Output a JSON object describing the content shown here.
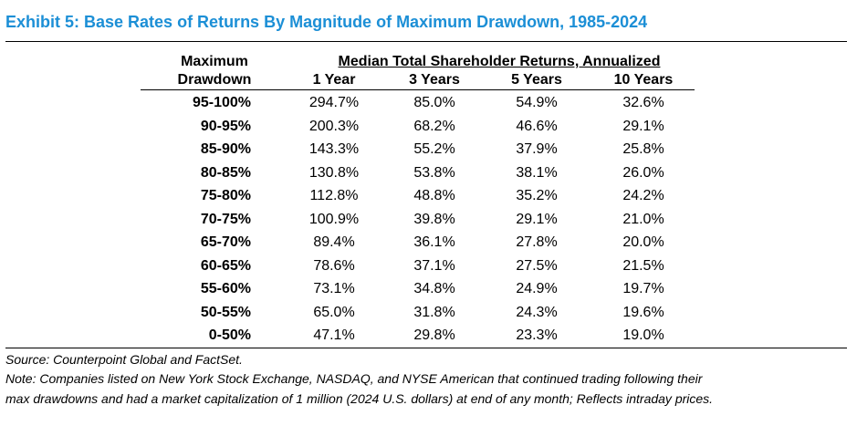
{
  "title": "Exhibit 5: Base Rates of Returns By Magnitude of Maximum Drawdown, 1985-2024",
  "table": {
    "row_header_line1": "Maximum",
    "row_header_line2": "Drawdown",
    "group_header": "Median Total Shareholder Returns, Annualized",
    "columns": [
      "1 Year",
      "3 Years",
      "5 Years",
      "10 Years"
    ],
    "rows": [
      {
        "label": "95-100%",
        "values": [
          "294.7%",
          "85.0%",
          "54.9%",
          "32.6%"
        ]
      },
      {
        "label": "90-95%",
        "values": [
          "200.3%",
          "68.2%",
          "46.6%",
          "29.1%"
        ]
      },
      {
        "label": "85-90%",
        "values": [
          "143.3%",
          "55.2%",
          "37.9%",
          "25.8%"
        ]
      },
      {
        "label": "80-85%",
        "values": [
          "130.8%",
          "53.8%",
          "38.1%",
          "26.0%"
        ]
      },
      {
        "label": "75-80%",
        "values": [
          "112.8%",
          "48.8%",
          "35.2%",
          "24.2%"
        ]
      },
      {
        "label": "70-75%",
        "values": [
          "100.9%",
          "39.8%",
          "29.1%",
          "21.0%"
        ]
      },
      {
        "label": "65-70%",
        "values": [
          "89.4%",
          "36.1%",
          "27.8%",
          "20.0%"
        ]
      },
      {
        "label": "60-65%",
        "values": [
          "78.6%",
          "37.1%",
          "27.5%",
          "21.5%"
        ]
      },
      {
        "label": "55-60%",
        "values": [
          "73.1%",
          "34.8%",
          "24.9%",
          "19.7%"
        ]
      },
      {
        "label": "50-55%",
        "values": [
          "65.0%",
          "31.8%",
          "24.3%",
          "19.6%"
        ]
      },
      {
        "label": "0-50%",
        "values": [
          "47.1%",
          "29.8%",
          "23.3%",
          "19.0%"
        ]
      }
    ]
  },
  "footer": {
    "source": "Source: Counterpoint Global and FactSet.",
    "note_line1": "Note: Companies listed on New York Stock Exchange, NASDAQ, and NYSE American that continued trading following their",
    "note_line2": "max drawdowns and had a market capitalization of 1 million (2024 U.S. dollars) at end of any month; Reflects intraday prices."
  },
  "colors": {
    "title": "#1c8fd6",
    "text": "#000000"
  }
}
